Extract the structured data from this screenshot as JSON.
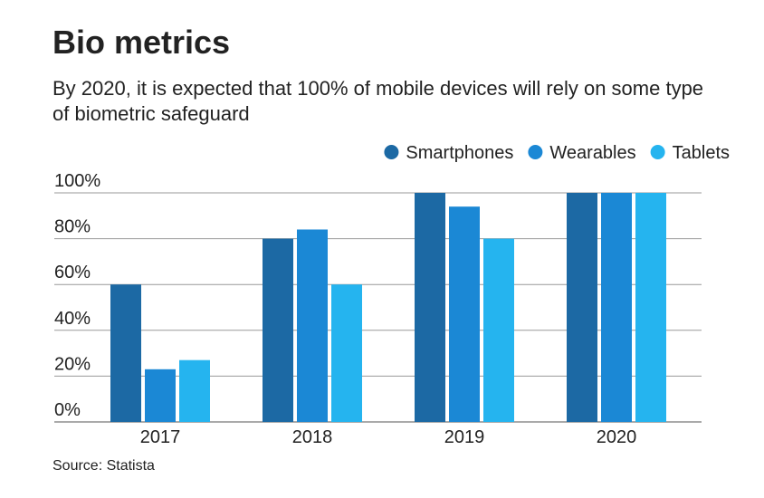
{
  "chart_data": {
    "type": "bar",
    "title": "Bio metrics",
    "subtitle": "By 2020, it is expected that 100% of mobile devices will rely on some type of biometric safeguard",
    "source": "Source: Statista",
    "categories": [
      "2017",
      "2018",
      "2019",
      "2020"
    ],
    "series": [
      {
        "name": "Smartphones",
        "color": "#1c69a4",
        "values": [
          60,
          80,
          100,
          100
        ]
      },
      {
        "name": "Wearables",
        "color": "#1b88d5",
        "values": [
          23,
          84,
          94,
          100
        ]
      },
      {
        "name": "Tablets",
        "color": "#25b4ef",
        "values": [
          27,
          60,
          80,
          100
        ]
      }
    ],
    "ylim": [
      0,
      100
    ],
    "yticks": [
      {
        "value": 0,
        "label": "0%"
      },
      {
        "value": 20,
        "label": "20%"
      },
      {
        "value": 40,
        "label": "40%"
      },
      {
        "value": 60,
        "label": "60%"
      },
      {
        "value": 80,
        "label": "80%"
      },
      {
        "value": 100,
        "label": "100%"
      }
    ],
    "grid": true,
    "legend": "top-right"
  }
}
